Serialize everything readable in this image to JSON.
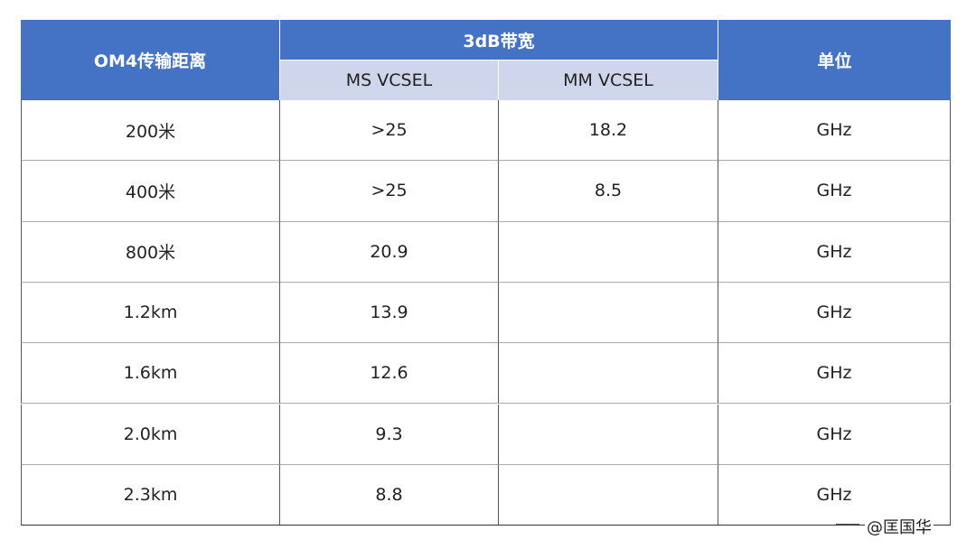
{
  "table": {
    "header": {
      "distance": "OM4传输距离",
      "bandwidth": "3dB带宽",
      "unit": "单位",
      "sub": [
        "MS VCSEL",
        "MM VCSEL"
      ]
    },
    "rows": [
      [
        "200米",
        ">25",
        18.2,
        "GHz"
      ],
      [
        "400米",
        ">25",
        8.5,
        "GHz"
      ],
      [
        "800米",
        20.9,
        null,
        "GHz"
      ],
      [
        "1.2km",
        13.9,
        null,
        "GHz"
      ],
      [
        "1.6km",
        12.6,
        null,
        "GHz"
      ],
      [
        "2.0km",
        9.3,
        null,
        "GHz"
      ],
      [
        "2.3km",
        8.8,
        null,
        "GHz"
      ]
    ]
  },
  "watermark": "@匡国华"
}
